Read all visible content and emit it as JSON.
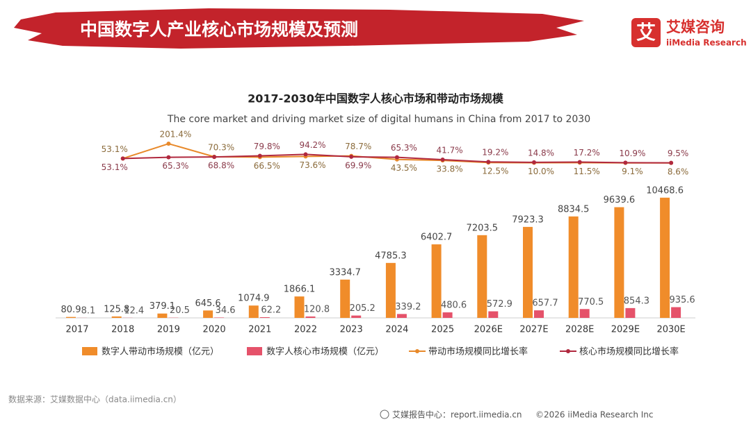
{
  "header": {
    "title": "中国数字人产业核心市场规模及预测",
    "logo_icon": "艾",
    "logo_name": "艾媒咨询",
    "logo_sub": "iiMedia Research"
  },
  "chart_data": {
    "type": "bar",
    "title": "2017-2030年中国数字人核心市场和带动市场规模",
    "subtitle": "The core market and driving market size of digital humans in China from 2017 to 2030",
    "categories": [
      "2017",
      "2018",
      "2019",
      "2020",
      "2021",
      "2022",
      "2023",
      "2024",
      "2025",
      "2026E",
      "2027E",
      "2028E",
      "2029E",
      "2030E"
    ],
    "ylim": [
      0,
      11000
    ],
    "y2lim": [
      0,
      250
    ],
    "series": [
      {
        "name": "数字人带动市场规模（亿元）",
        "type": "bar",
        "color": "#f08c2a",
        "values": [
          80.9,
          125.8,
          379.1,
          645.6,
          1074.9,
          1866.1,
          3334.7,
          4785.3,
          6402.7,
          7203.5,
          7923.3,
          8834.5,
          9639.6,
          10468.6
        ]
      },
      {
        "name": "数字人核心市场规模（亿元）",
        "type": "bar",
        "color": "#e5526a",
        "values": [
          8.1,
          12.4,
          20.5,
          34.6,
          62.2,
          120.8,
          205.2,
          339.2,
          480.6,
          572.9,
          657.7,
          770.5,
          854.3,
          935.6
        ]
      },
      {
        "name": "带动市场规模同比增长率",
        "type": "line",
        "axis": "y2",
        "color": "#e8892a",
        "values": [
          null,
          53.1,
          201.4,
          70.3,
          66.5,
          73.6,
          78.7,
          43.5,
          33.8,
          12.5,
          10.0,
          11.5,
          9.1,
          8.6
        ],
        "value_labels": [
          null,
          "53.1%",
          "201.4%",
          "70.3%",
          "66.5%",
          "73.6%",
          "78.7%",
          "43.5%",
          "33.8%",
          "12.5%",
          "10.0%",
          "11.5%",
          "9.1%",
          "8.6%"
        ]
      },
      {
        "name": "核心市场规模同比增长率",
        "type": "line",
        "axis": "y2",
        "color": "#b0283e",
        "values": [
          null,
          53.1,
          65.3,
          68.8,
          79.8,
          94.2,
          69.9,
          65.3,
          41.7,
          19.2,
          14.8,
          17.2,
          10.9,
          9.5
        ],
        "value_labels": [
          null,
          "53.1%",
          "65.3%",
          "68.8%",
          "79.8%",
          "94.2%",
          "69.9%",
          "65.3%",
          "41.7%",
          "19.2%",
          "14.8%",
          "17.2%",
          "10.9%",
          "9.5%"
        ]
      }
    ]
  },
  "footer": {
    "source": "数据来源：艾媒数据中心（data.iimedia.cn）",
    "report_center": "艾媒报告中心：report.iimedia.cn",
    "copyright": "©2026  iiMedia Research  Inc"
  }
}
